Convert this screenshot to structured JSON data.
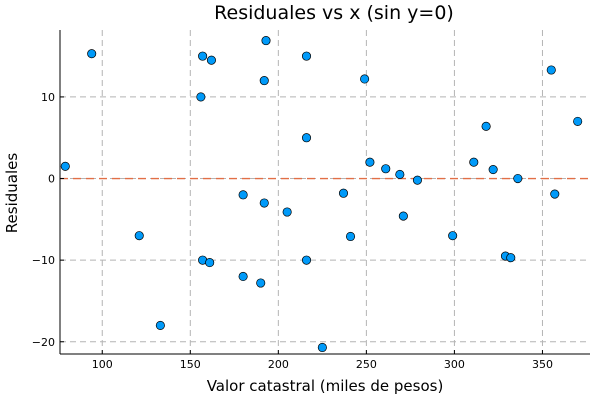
{
  "chart_data": {
    "type": "scatter",
    "title": "Residuales vs x (sin y=0)",
    "xlabel": "Valor catastral (miles de pesos)",
    "ylabel": "Residuales",
    "xlim": [
      76,
      377
    ],
    "ylim": [
      -21.5,
      18.2
    ],
    "xticks": [
      100,
      150,
      200,
      250,
      300,
      350
    ],
    "yticks": [
      -20,
      -10,
      0,
      10
    ],
    "grid": true,
    "legend": "none",
    "reference_line": {
      "y": 0,
      "style": "dashed",
      "color": "#e26f46"
    },
    "point_color": "#009af9",
    "points": [
      {
        "x": 79,
        "y": 1.5
      },
      {
        "x": 94,
        "y": 15.3
      },
      {
        "x": 121,
        "y": -7.0
      },
      {
        "x": 133,
        "y": -18.0
      },
      {
        "x": 156,
        "y": 10.0
      },
      {
        "x": 157,
        "y": 15.0
      },
      {
        "x": 157,
        "y": -10.0
      },
      {
        "x": 161,
        "y": -10.3
      },
      {
        "x": 162,
        "y": 14.5
      },
      {
        "x": 180,
        "y": -2.0
      },
      {
        "x": 180,
        "y": -12.0
      },
      {
        "x": 190,
        "y": -12.8
      },
      {
        "x": 192,
        "y": 12.0
      },
      {
        "x": 192,
        "y": -3.0
      },
      {
        "x": 193,
        "y": 16.9
      },
      {
        "x": 205,
        "y": -4.1
      },
      {
        "x": 216,
        "y": 15.0
      },
      {
        "x": 216,
        "y": 5.0
      },
      {
        "x": 216,
        "y": -10.0
      },
      {
        "x": 225,
        "y": -20.7
      },
      {
        "x": 237,
        "y": -1.8
      },
      {
        "x": 241,
        "y": -7.1
      },
      {
        "x": 249,
        "y": 12.2
      },
      {
        "x": 252,
        "y": 2.0
      },
      {
        "x": 261,
        "y": 1.2
      },
      {
        "x": 269,
        "y": 0.5
      },
      {
        "x": 271,
        "y": -4.6
      },
      {
        "x": 279,
        "y": -0.2
      },
      {
        "x": 299,
        "y": -7.0
      },
      {
        "x": 311,
        "y": 2.0
      },
      {
        "x": 318,
        "y": 6.4
      },
      {
        "x": 322,
        "y": 1.1
      },
      {
        "x": 329,
        "y": -9.5
      },
      {
        "x": 332,
        "y": -9.7
      },
      {
        "x": 336,
        "y": 0.0
      },
      {
        "x": 355,
        "y": 13.3
      },
      {
        "x": 357,
        "y": -1.9
      },
      {
        "x": 370,
        "y": 7.0
      }
    ]
  }
}
